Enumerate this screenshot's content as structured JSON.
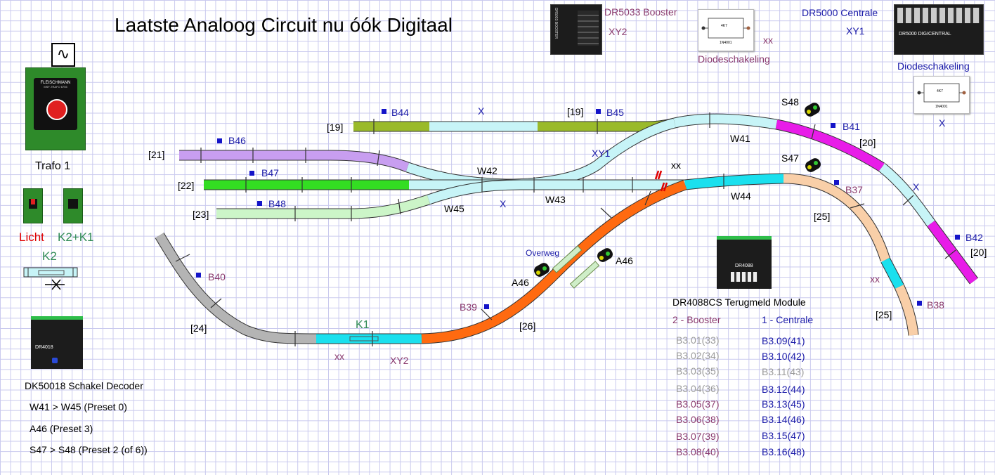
{
  "title": "Laatste Analoog Circuit nu óók Digitaal",
  "devices": {
    "booster_name": "DR5033 Booster",
    "booster_tag": "XY2",
    "booster_device_text": "DR5033 BOOSTER",
    "centrale_name": "DR5000 Centrale",
    "centrale_tag": "XY1",
    "centrale_device_text": "DR5000 DIGICENTRAL",
    "diode1_label": "Diodeschakeling",
    "diode1_tag": "xx",
    "diode2_label": "Diodeschakeling",
    "diode2_tag": "X",
    "diode_chip": "1N4001",
    "diode_r": "4K7",
    "trafo_label": "Trafo 1",
    "trafo_brand": "FLEISCHMANN",
    "trafo_model": "MSF-TRAFO 6755",
    "licht_label": "Licht",
    "k2k1_label": "K2+K1",
    "k2_label": "K2",
    "dr4018_device_text": "DR4018",
    "dr4088_device_text": "DR4088"
  },
  "tracks": {
    "b44": "B44",
    "b45": "B45",
    "b46": "B46",
    "b47": "B47",
    "b48": "B48",
    "b41": "B41",
    "b42": "B42",
    "b37": "B37",
    "b38": "B38",
    "b39": "B39",
    "b40": "B40",
    "t19a": "[19]",
    "t19b": "[19]",
    "t21": "[21]",
    "t22": "[22]",
    "t23": "[23]",
    "t20a": "[20]",
    "t20b": "[20]",
    "t24": "[24]",
    "t25a": "[25]",
    "t25b": "[25]",
    "t26": "[26]",
    "w41": "W41",
    "w42": "W42",
    "w43": "W43",
    "w44": "W44",
    "w45": "W45",
    "s47": "S47",
    "s48": "S48",
    "a46a": "A46",
    "a46b": "A46",
    "overweg": "Overweg",
    "x_top": "X",
    "x_mid": "X",
    "x_right": "X",
    "xy1": "XY1",
    "xy2": "XY2",
    "k1": "K1",
    "xx_top": "xx",
    "xx_bottom": "xx",
    "xx_right": "xx"
  },
  "decoder": {
    "title": "DK50018 Schakel Decoder",
    "lines": [
      "W41 > W45 (Preset 0)",
      "A46 (Preset 3)",
      "S47 > S48 (Preset 2 (of 6))"
    ]
  },
  "feedback": {
    "title": "DR4088CS Terugmeld Module",
    "col_booster": "2 - Booster",
    "col_centrale": "1 - Centrale",
    "booster_rows": [
      "B3.01(33)",
      "B3.02(34)",
      "B3.03(35)",
      "B3.04(36)",
      "B3.05(37)",
      "B3.06(38)",
      "B3.07(39)",
      "B3.08(40)"
    ],
    "centrale_rows": [
      "B3.09(41)",
      "B3.10(42)",
      "B3.11(43)",
      "B3.12(44)",
      "B3.13(45)",
      "B3.14(46)",
      "B3.15(47)",
      "B3.16(48)"
    ]
  },
  "colors": {
    "green_track": "#9aba2a",
    "lightblue": "#c7f4f7",
    "magenta": "#e81ce8",
    "purple": "#c89ef0",
    "bright_green": "#33dd22",
    "pale_green": "#ccf5c8",
    "cyan": "#1ae0ee",
    "orange": "#ff6a10",
    "peach": "#f9cfa8",
    "gray": "#b4b4b4"
  }
}
